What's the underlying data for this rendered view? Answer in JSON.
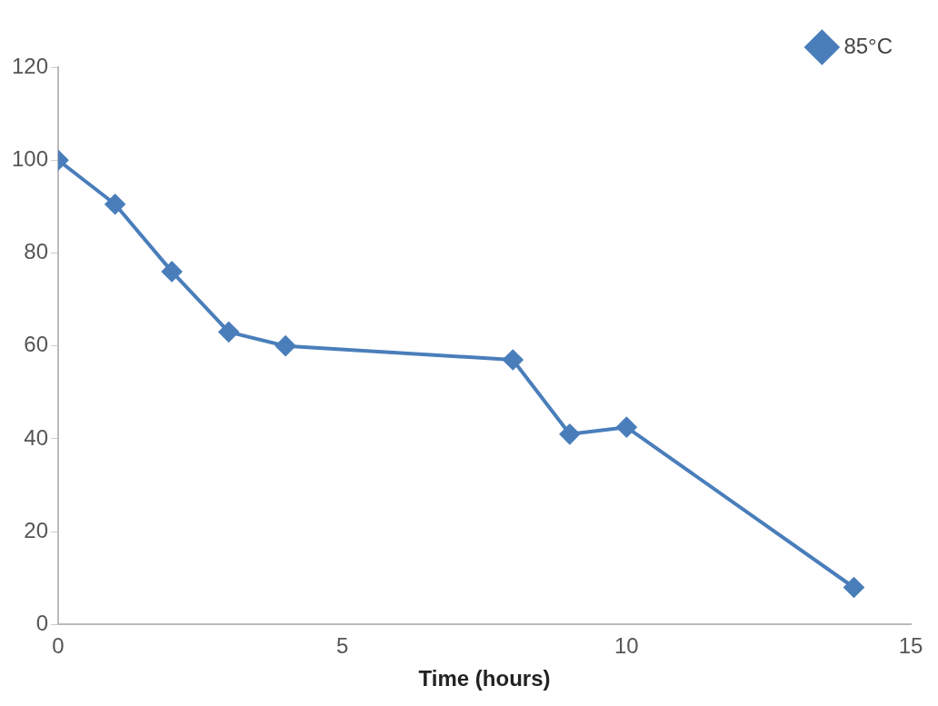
{
  "chart_data": {
    "type": "line",
    "xlabel": "Time (hours)",
    "x": [
      0,
      1,
      2,
      3,
      4,
      8,
      9,
      10,
      14
    ],
    "series": [
      {
        "name": "85°C",
        "color": "#4a7ebb",
        "values": [
          100,
          90.5,
          76,
          63,
          60,
          57,
          41,
          42.5,
          8
        ]
      }
    ],
    "xlim": [
      0,
      15
    ],
    "xticks": [
      0,
      5,
      10,
      15
    ],
    "ylim": [
      0,
      120
    ],
    "yticks": [
      0,
      20,
      40,
      60,
      80,
      100,
      120
    ],
    "grid": false,
    "legend": "top right",
    "marker": "diamond",
    "line_style": "solid"
  }
}
